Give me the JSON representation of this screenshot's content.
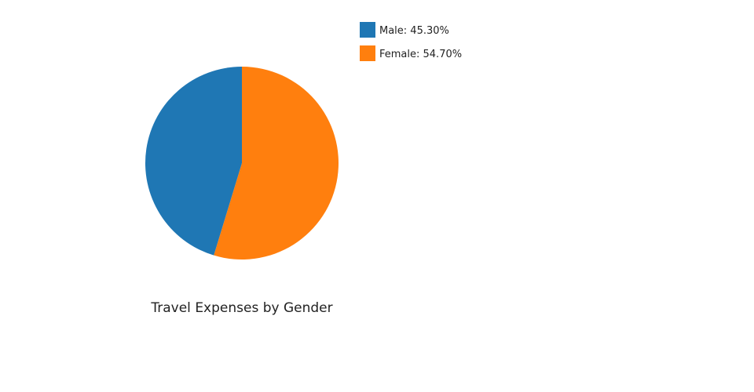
{
  "chart_data": {
    "type": "pie",
    "title": "Travel Expenses by Gender",
    "legend_position": "top-right",
    "slices": [
      {
        "label": "Male",
        "value": 45.3,
        "display": "Male: 45.30%",
        "color": "#1f77b4"
      },
      {
        "label": "Female",
        "value": 54.7,
        "display": "Female: 54.70%",
        "color": "#ff7f0e"
      }
    ]
  }
}
